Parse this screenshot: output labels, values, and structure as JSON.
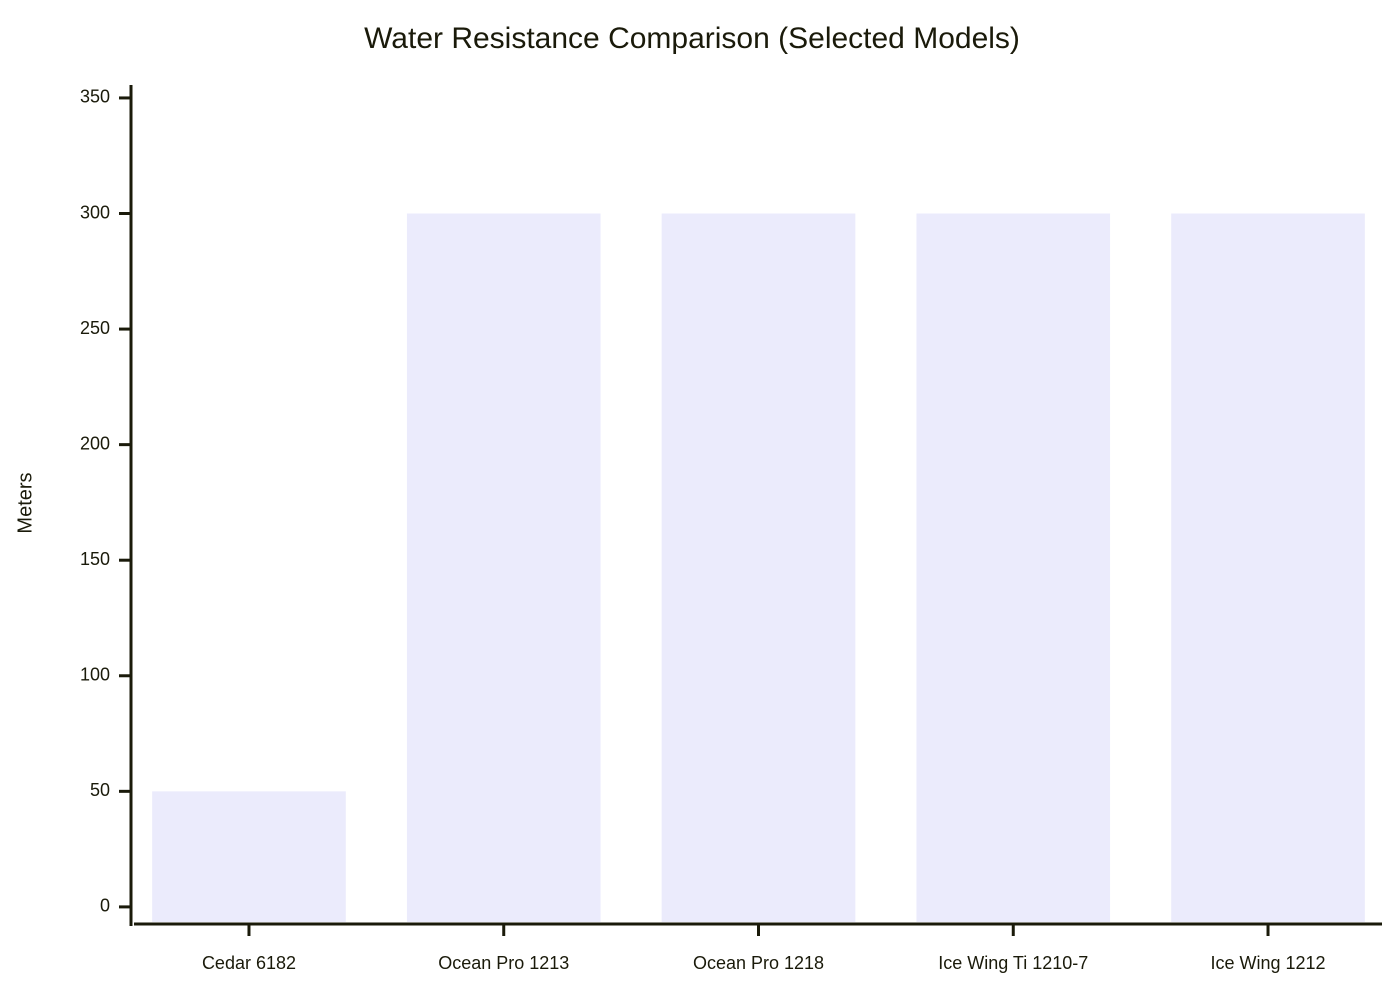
{
  "chart_data": {
    "type": "bar",
    "title": "Water Resistance Comparison (Selected Models)",
    "y_label": "Meters",
    "categories": [
      "Cedar 6182",
      "Ocean Pro 1213",
      "Ocean Pro 1218",
      "Ice Wing Ti 1210-7",
      "Ice Wing 1212"
    ],
    "values": [
      50,
      300,
      300,
      300,
      300
    ],
    "color": "#ebebfc",
    "ylim": [
      -7.4,
      355.6
    ],
    "yticks": [
      0,
      50,
      100,
      150,
      200,
      250,
      300,
      350
    ],
    "grid": false
  }
}
